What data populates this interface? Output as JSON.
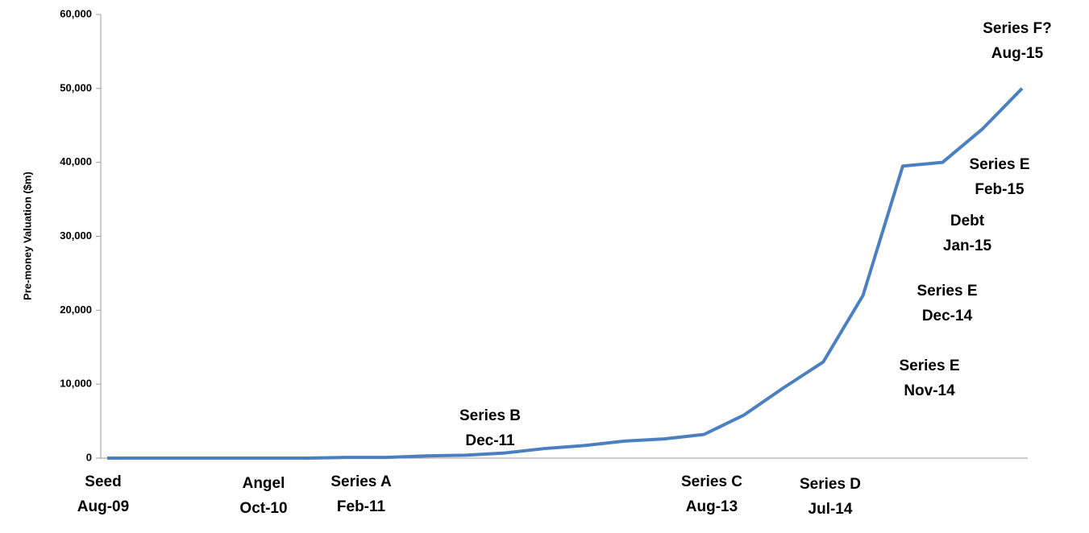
{
  "chart_data": {
    "type": "line",
    "y_label": "Pre-money Valuation ($m)",
    "categories": [
      [
        "Seed",
        "Aug-09"
      ],
      null,
      null,
      null,
      [
        "Angel",
        "Oct-10"
      ],
      null,
      [
        "Series A",
        "Feb-11"
      ],
      null,
      null,
      [
        "Series B",
        "Dec-11"
      ],
      null,
      null,
      null,
      null,
      null,
      [
        "Series C",
        "Aug-13"
      ],
      null,
      null,
      [
        "Series D",
        "Jul-14"
      ],
      [
        "Series E",
        "Nov-14"
      ],
      [
        "Series E",
        "Dec-14"
      ],
      [
        "Debt",
        "Jan-15"
      ],
      [
        "Series E",
        "Feb-15"
      ],
      [
        "Series F?",
        "Aug-15"
      ]
    ],
    "series": [
      {
        "color": "#4a7fc1",
        "values": [
          0,
          0,
          0,
          0,
          0,
          0,
          100,
          100,
          300,
          400,
          700,
          1300,
          1700,
          2300,
          2600,
          3200,
          5800,
          9500,
          13000,
          22000,
          39500,
          40000,
          44500,
          50000
        ]
      }
    ],
    "ylim": [
      0,
      60000
    ],
    "yticks": [
      0,
      {
        "value": 10000,
        "label": "10,000"
      },
      {
        "value": 20000,
        "label": "20,000"
      },
      {
        "value": 30000,
        "label": "30,000"
      },
      {
        "value": 40000,
        "label": "40,000"
      },
      {
        "value": 50000,
        "label": "50,000"
      },
      {
        "value": 60000,
        "label": "60,000"
      }
    ]
  }
}
